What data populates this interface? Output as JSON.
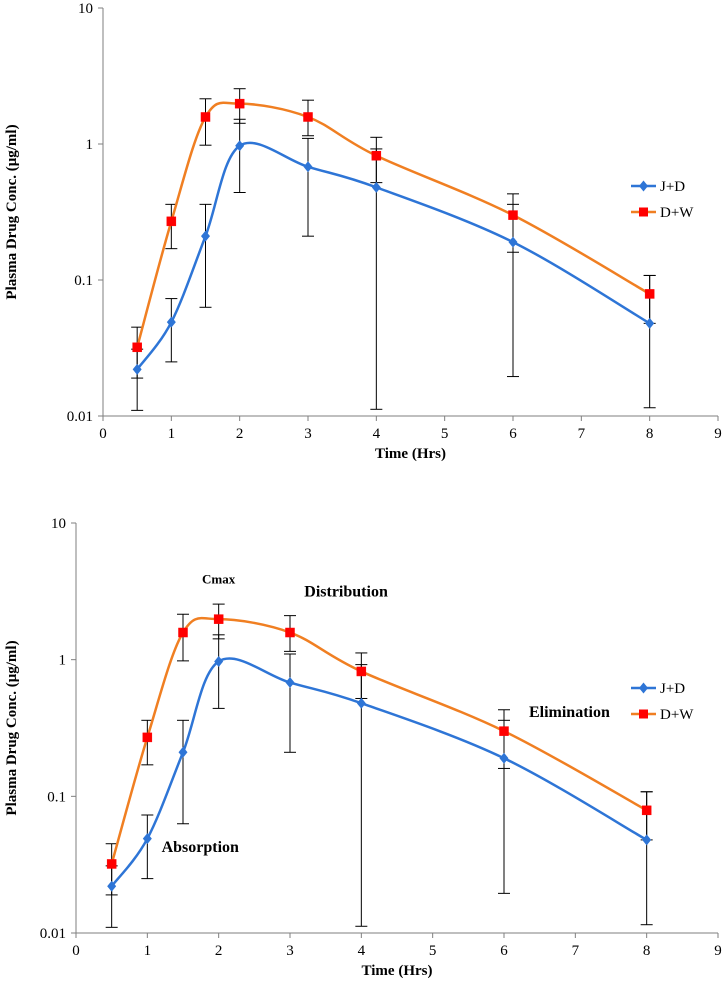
{
  "chart_data": [
    {
      "type": "line",
      "x_scale": "linear",
      "y_scale": "log",
      "xlabel": "Time (Hrs)",
      "ylabel": "Plasma Drug Conc. (μg/ml)",
      "xlim": [
        0,
        9
      ],
      "ylim": [
        0.01,
        10
      ],
      "x_ticks": [
        "0",
        "1",
        "2",
        "3",
        "4",
        "5",
        "6",
        "7",
        "8",
        "9"
      ],
      "y_ticks": [
        "0.01",
        "0.1",
        "1",
        "10"
      ],
      "legend_position": "right",
      "series": [
        {
          "name": "J+D",
          "color": "#2e75d6",
          "marker": "diamond",
          "x": [
            0.5,
            1,
            1.5,
            2,
            3,
            4,
            6,
            8
          ],
          "y": [
            0.022,
            0.049,
            0.21,
            0.97,
            0.68,
            0.48,
            0.19,
            0.048
          ],
          "err_low": [
            0.011,
            0.025,
            0.063,
            0.44,
            0.21,
            0.0112,
            0.0195,
            0.0115
          ],
          "err_high": [
            0.031,
            0.073,
            0.36,
            1.52,
            1.1,
            0.92,
            0.36,
            0.108
          ]
        },
        {
          "name": "D+W",
          "color": "#f07f22",
          "marker": "square",
          "x": [
            0.5,
            1,
            1.5,
            2,
            3,
            4,
            6,
            8
          ],
          "y": [
            0.032,
            0.27,
            1.58,
            1.98,
            1.58,
            0.82,
            0.3,
            0.079
          ],
          "err_low": [
            0.019,
            0.17,
            0.98,
            1.42,
            1.15,
            0.52,
            0.16,
            0.048
          ],
          "err_high": [
            0.045,
            0.36,
            2.15,
            2.55,
            2.1,
            1.12,
            0.43,
            0.108
          ]
        }
      ],
      "annotations": []
    },
    {
      "type": "line",
      "x_scale": "linear",
      "y_scale": "log",
      "xlabel": "Time (Hrs)",
      "ylabel": "Plasma Drug Conc. (μg/ml)",
      "xlim": [
        0,
        9
      ],
      "ylim": [
        0.01,
        10
      ],
      "x_ticks": [
        "0",
        "1",
        "2",
        "3",
        "4",
        "5",
        "6",
        "7",
        "8",
        "9"
      ],
      "y_ticks": [
        "0.01",
        "0.1",
        "1",
        "10"
      ],
      "legend_position": "right",
      "series": [
        {
          "name": "J+D",
          "color": "#2e75d6",
          "marker": "diamond",
          "x": [
            0.5,
            1,
            1.5,
            2,
            3,
            4,
            6,
            8
          ],
          "y": [
            0.022,
            0.049,
            0.21,
            0.97,
            0.68,
            0.48,
            0.19,
            0.048
          ],
          "err_low": [
            0.011,
            0.025,
            0.063,
            0.44,
            0.21,
            0.0112,
            0.0195,
            0.0115
          ],
          "err_high": [
            0.031,
            0.073,
            0.36,
            1.52,
            1.1,
            0.92,
            0.36,
            0.108
          ]
        },
        {
          "name": "D+W",
          "color": "#f07f22",
          "marker": "square",
          "x": [
            0.5,
            1,
            1.5,
            2,
            3,
            4,
            6,
            8
          ],
          "y": [
            0.032,
            0.27,
            1.58,
            1.98,
            1.58,
            0.82,
            0.3,
            0.079
          ],
          "err_low": [
            0.019,
            0.17,
            0.98,
            1.42,
            1.15,
            0.52,
            0.16,
            0.048
          ],
          "err_high": [
            0.045,
            0.36,
            2.15,
            2.55,
            2.1,
            1.12,
            0.43,
            0.108
          ]
        }
      ],
      "annotations": [
        {
          "text": "Cmax",
          "x": 2,
          "y": 3.6
        },
        {
          "text": "Distribution",
          "x": 3.2,
          "y": 2.9
        },
        {
          "text": "Elimination",
          "x": 6.35,
          "y": 0.38
        },
        {
          "text": "Absorption",
          "x": 1.2,
          "y": 0.039
        }
      ]
    }
  ]
}
